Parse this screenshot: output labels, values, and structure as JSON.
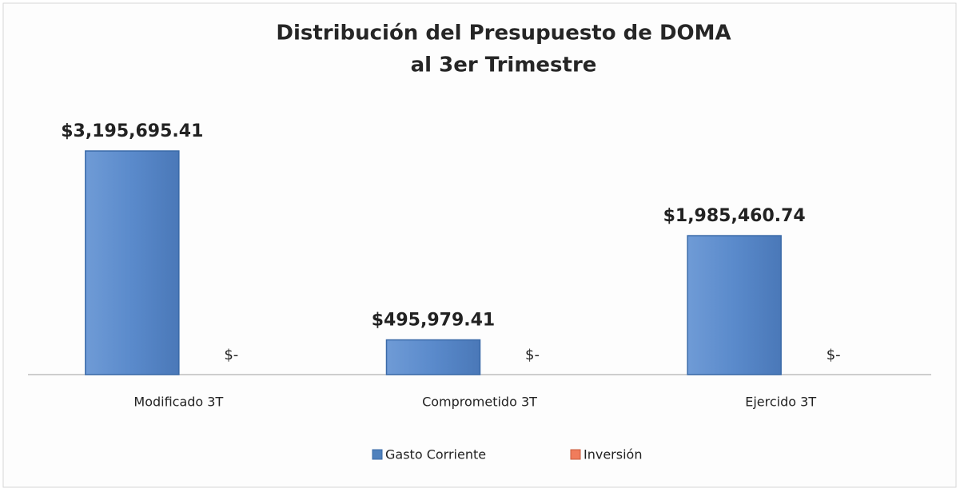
{
  "chart_data": {
    "type": "bar",
    "title": "Distribución  del Presupuesto de DOMA",
    "subtitle": "al 3er Trimestre",
    "categories": [
      "Modificado 3T",
      "Comprometido 3T",
      "Ejercido 3T"
    ],
    "series": [
      {
        "name": "Gasto Corriente",
        "color": "#4f81bd",
        "values": [
          3195695.41,
          495979.41,
          1985460.74
        ],
        "value_labels": [
          "$3,195,695.41",
          "$495,979.41",
          "$1,985,460.74"
        ]
      },
      {
        "name": "Inversión",
        "color": "#f07c5c",
        "values": [
          0,
          0,
          0
        ],
        "value_labels": [
          "$-",
          "$-",
          "$-"
        ]
      }
    ],
    "legend": "bottom"
  }
}
